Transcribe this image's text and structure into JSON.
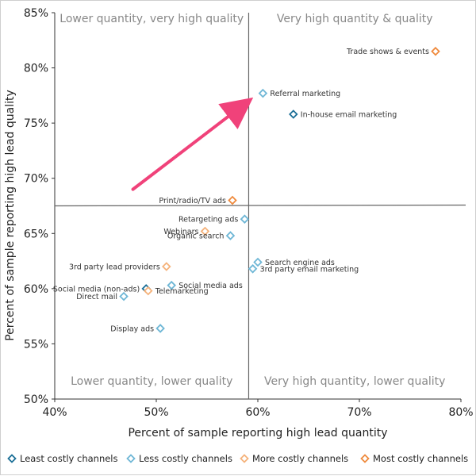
{
  "chart_data": {
    "type": "scatter",
    "title": "",
    "xlabel": "Percent of sample reporting high lead quantity",
    "ylabel": "Percent of sample reporting high lead quality",
    "xlim": [
      40,
      80
    ],
    "ylim": [
      50,
      85
    ],
    "x_ticks": [
      40,
      50,
      60,
      70,
      80
    ],
    "y_ticks": [
      50,
      55,
      60,
      65,
      70,
      75,
      80,
      85
    ],
    "x_tick_labels": [
      "40%",
      "50%",
      "60%",
      "70%",
      "80%"
    ],
    "y_tick_labels": [
      "50%",
      "55%",
      "60%",
      "65%",
      "70%",
      "75%",
      "80%",
      "85%"
    ],
    "divider_x": 59.1,
    "divider_y": 67.5,
    "quadrant_labels": {
      "top_left": "Lower quantity, very high quality",
      "top_right": "Very high quantity & quality",
      "bottom_left": "Lower quantity, lower quality",
      "bottom_right": "Very high quantity, lower quality"
    },
    "categories": [
      {
        "key": "least",
        "name": "Least costly channels",
        "color": "#1a6e96"
      },
      {
        "key": "less",
        "name": "Less costly channels",
        "color": "#6fb7d6"
      },
      {
        "key": "more",
        "name": "More costly channels",
        "color": "#f5b27a"
      },
      {
        "key": "most",
        "name": "Most costly channels",
        "color": "#ef8a3d"
      }
    ],
    "points": [
      {
        "label": "Trade shows & events",
        "x": 77.5,
        "y": 81.5,
        "category": "most",
        "anchor": "left"
      },
      {
        "label": "Referral marketing",
        "x": 60.5,
        "y": 77.7,
        "category": "less",
        "anchor": "right"
      },
      {
        "label": "In-house email marketing",
        "x": 63.5,
        "y": 75.8,
        "category": "least",
        "anchor": "right"
      },
      {
        "label": "Print/radio/TV ads",
        "x": 57.5,
        "y": 68.0,
        "category": "most",
        "anchor": "left"
      },
      {
        "label": "Retargeting ads",
        "x": 58.7,
        "y": 66.3,
        "category": "less",
        "anchor": "left"
      },
      {
        "label": "Webinars",
        "x": 54.8,
        "y": 65.2,
        "category": "more",
        "anchor": "left"
      },
      {
        "label": "Organic search",
        "x": 57.3,
        "y": 64.8,
        "category": "less",
        "anchor": "left"
      },
      {
        "label": "Search engine ads",
        "x": 60.0,
        "y": 62.4,
        "category": "less",
        "anchor": "right"
      },
      {
        "label": "3rd party email marketing",
        "x": 59.5,
        "y": 61.8,
        "category": "less",
        "anchor": "right"
      },
      {
        "label": "3rd party lead providers",
        "x": 51.0,
        "y": 62.0,
        "category": "more",
        "anchor": "left"
      },
      {
        "label": "Social media ads",
        "x": 51.5,
        "y": 60.3,
        "category": "less",
        "anchor": "right"
      },
      {
        "label": "Social media (non-ads)",
        "x": 49.0,
        "y": 60.0,
        "category": "least",
        "anchor": "left"
      },
      {
        "label": "Telemarketing",
        "x": 49.2,
        "y": 59.8,
        "category": "more",
        "anchor": "right"
      },
      {
        "label": "Direct mail",
        "x": 46.8,
        "y": 59.3,
        "category": "less",
        "anchor": "left"
      },
      {
        "label": "Display ads",
        "x": 50.4,
        "y": 56.4,
        "category": "less",
        "anchor": "left"
      }
    ],
    "annotation_arrow": {
      "from": [
        47.7,
        69.0
      ],
      "to": [
        58.8,
        76.8
      ],
      "color": "#f0427a"
    },
    "grid": false,
    "legend": "bottom"
  }
}
